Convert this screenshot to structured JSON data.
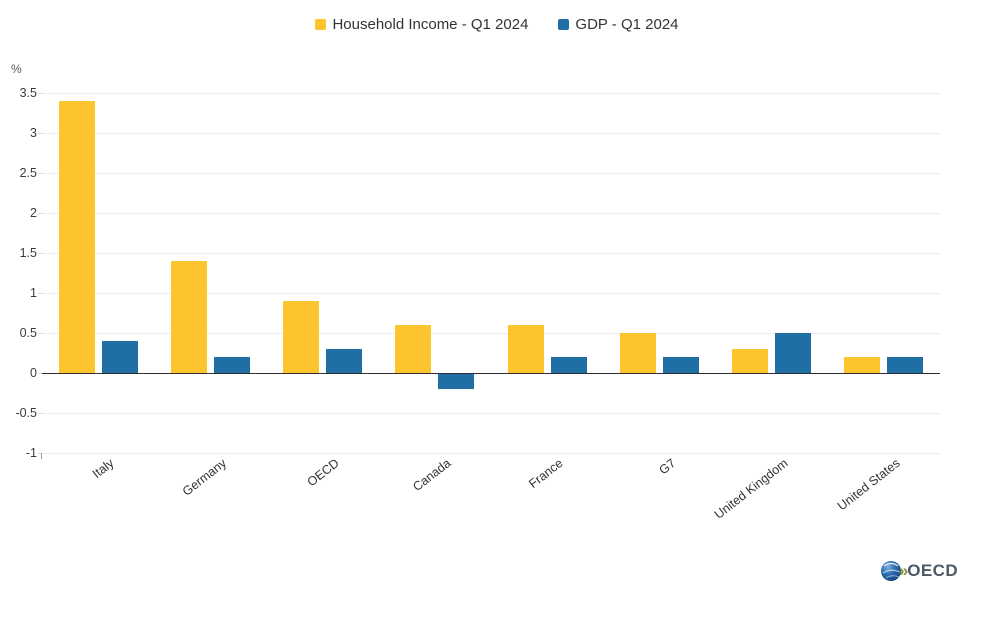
{
  "legend": {
    "items": [
      {
        "label": "Household Income - Q1 2024",
        "color": "#FCC42D"
      },
      {
        "label": "GDP - Q1 2024",
        "color": "#1F6FA4"
      }
    ]
  },
  "chart_data": {
    "type": "bar",
    "title": "",
    "unit_label": "%",
    "xlabel": "",
    "ylabel": "%",
    "categories": [
      "Italy",
      "Germany",
      "OECD",
      "Canada",
      "France",
      "G7",
      "United Kingdom",
      "United States"
    ],
    "series": [
      {
        "name": "Household Income - Q1 2024",
        "color": "#FCC42D",
        "values": [
          3.4,
          1.4,
          0.9,
          0.6,
          0.6,
          0.5,
          0.3,
          0.2
        ]
      },
      {
        "name": "GDP - Q1 2024",
        "color": "#1F6FA4",
        "values": [
          0.4,
          0.2,
          0.3,
          -0.2,
          0.2,
          0.2,
          0.5,
          0.2
        ]
      }
    ],
    "ylim": [
      -1,
      3.5
    ],
    "yticks": [
      3.5,
      3,
      2.5,
      2,
      1.5,
      1,
      0.5,
      0,
      -0.5,
      -1
    ],
    "grid": true,
    "legend_position": "top"
  },
  "branding": {
    "logo_text": "OECD",
    "chevron_glyph": "»"
  }
}
